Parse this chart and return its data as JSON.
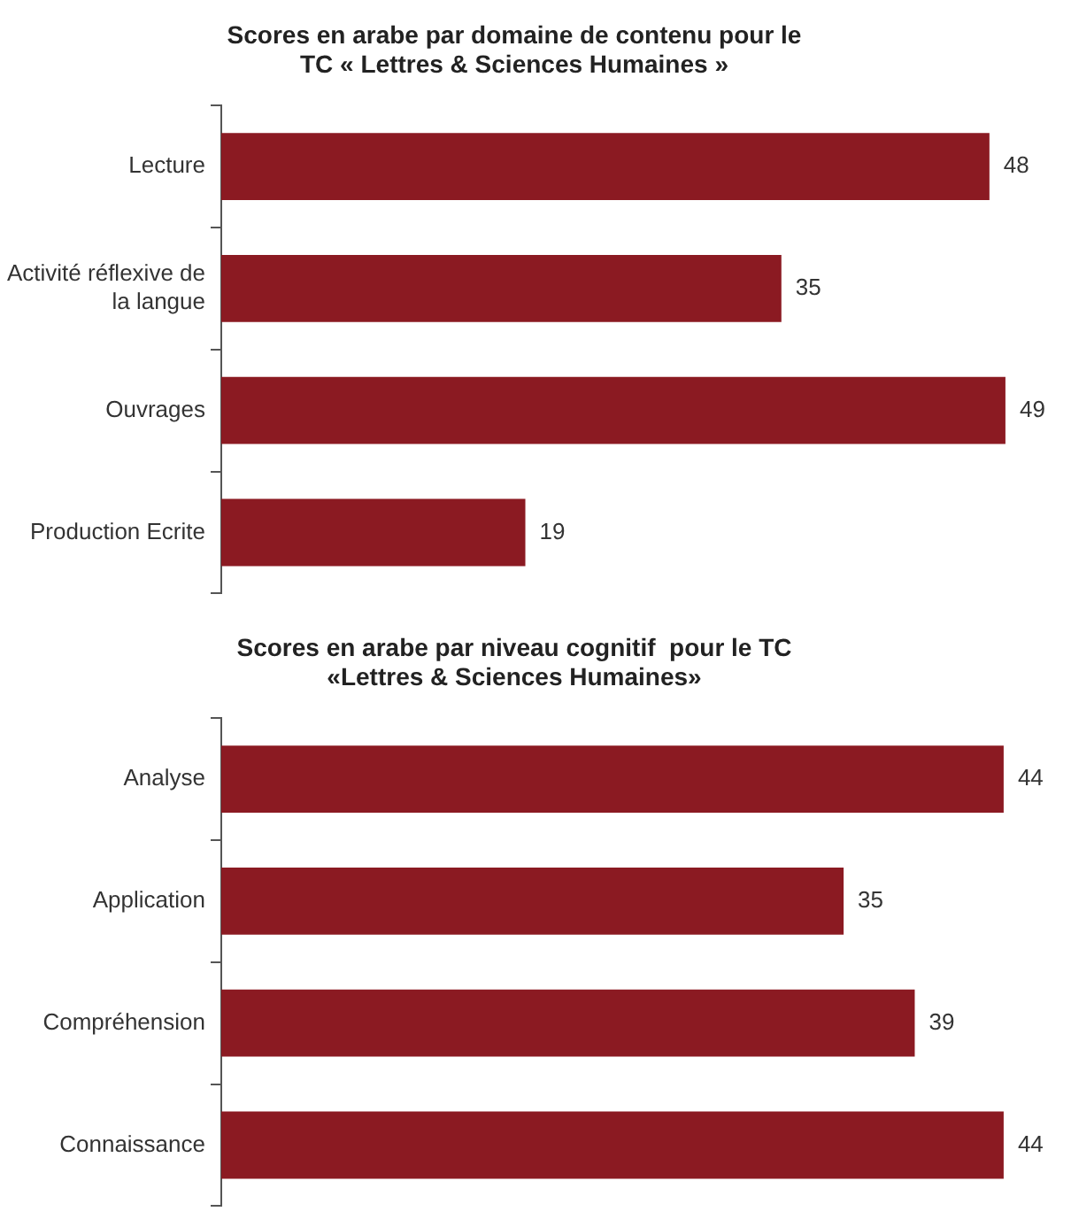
{
  "chart_data": [
    {
      "type": "bar",
      "orientation": "horizontal",
      "title": "Scores en arabe par domaine de contenu pour le TC « Lettres & Sciences Humaines »",
      "categories": [
        "Lecture",
        "Activité réflexive de la langue",
        "Ouvrages",
        "Production Ecrite"
      ],
      "values": [
        48,
        35,
        49,
        19
      ],
      "color": "#8b1a22",
      "data_labels": true
    },
    {
      "type": "bar",
      "orientation": "horizontal",
      "title": "Scores en arabe par niveau cognitif  pour le TC «Lettres & Sciences Humaines»",
      "categories": [
        "Analyse",
        "Application",
        "Compréhension",
        "Connaissance"
      ],
      "values": [
        44,
        35,
        39,
        44
      ],
      "color": "#8b1a22",
      "data_labels": true
    }
  ]
}
